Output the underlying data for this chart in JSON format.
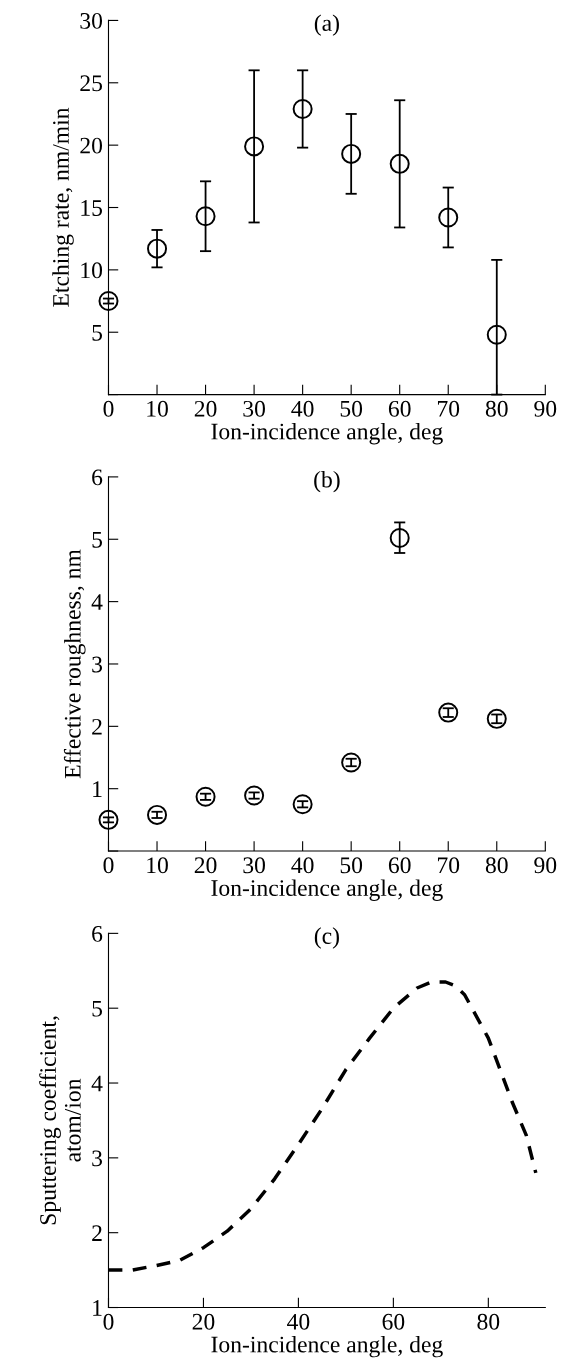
{
  "chart_data": [
    {
      "type": "scatter",
      "title": "(a)",
      "xlabel": "Ion-incidence angle, deg",
      "ylabel": "Etching rate, nm/min",
      "xlim": [
        0,
        90
      ],
      "xticks": [
        0,
        10,
        20,
        30,
        40,
        50,
        60,
        70,
        80,
        90
      ],
      "ylim": [
        0,
        30
      ],
      "yticks": [
        {
          "value": 0,
          "label": null
        },
        5,
        10,
        15,
        20,
        25,
        30
      ],
      "marker": "circle",
      "grid": false,
      "legend": false,
      "series": [
        {
          "color": "#000000",
          "x": [
            0,
            10,
            20,
            30,
            40,
            50,
            60,
            70,
            80
          ],
          "values": [
            7.5,
            11.7,
            14.3,
            19.9,
            22.9,
            19.3,
            18.5,
            14.2,
            4.8
          ],
          "errors": [
            [
              7.3,
              7.7
            ],
            [
              10.2,
              13.2
            ],
            [
              11.5,
              17.1
            ],
            [
              13.8,
              26.0
            ],
            [
              19.8,
              26.0
            ],
            [
              16.1,
              22.5
            ],
            [
              13.4,
              23.6
            ],
            [
              11.8,
              16.6
            ],
            [
              0,
              10.8
            ]
          ]
        }
      ]
    },
    {
      "type": "scatter",
      "title": "(b)",
      "xlabel": "Ion-incidence angle, deg",
      "ylabel": "Effective roughness, nm",
      "xlim": [
        0,
        90
      ],
      "xticks": [
        0,
        10,
        20,
        30,
        40,
        50,
        60,
        70,
        80,
        90
      ],
      "ylim": [
        0,
        6
      ],
      "yticks": [
        {
          "value": 0,
          "label": null
        },
        1,
        2,
        3,
        4,
        5,
        6
      ],
      "marker": "circle",
      "grid": false,
      "legend": false,
      "series": [
        {
          "color": "#000000",
          "x": [
            0,
            10,
            20,
            30,
            40,
            50,
            60,
            70,
            80
          ],
          "values": [
            0.5,
            0.58,
            0.87,
            0.89,
            0.75,
            1.42,
            5.02,
            2.22,
            2.12
          ],
          "errors": [
            0.04,
            0.05,
            0.05,
            0.05,
            0.05,
            0.06,
            [
              4.78,
              5.27
            ],
            0.07,
            0.07
          ]
        }
      ]
    },
    {
      "type": "line",
      "title": "(c)",
      "xlabel": "Ion-incidence angle, deg",
      "ylabel": "Sputtering coefficient,\natom/ion",
      "xlim": [
        0,
        92
      ],
      "xticks": [
        0,
        20,
        40,
        60,
        80
      ],
      "ylim": [
        1,
        6
      ],
      "yticks": [
        1,
        2,
        3,
        4,
        5,
        6
      ],
      "line_style": "dashed",
      "marker": "none",
      "grid": false,
      "legend": false,
      "series": [
        {
          "color": "#000000",
          "x": [
            0,
            5,
            10,
            15,
            20,
            25,
            30,
            35,
            40,
            45,
            50,
            55,
            60,
            65,
            68,
            71,
            73,
            75,
            80,
            85,
            88,
            90
          ],
          "values": [
            1.5,
            1.5,
            1.56,
            1.63,
            1.8,
            2.02,
            2.32,
            2.72,
            3.18,
            3.66,
            4.18,
            4.6,
            5.0,
            5.27,
            5.35,
            5.35,
            5.3,
            5.18,
            4.6,
            3.75,
            3.3,
            2.8
          ]
        }
      ]
    }
  ]
}
